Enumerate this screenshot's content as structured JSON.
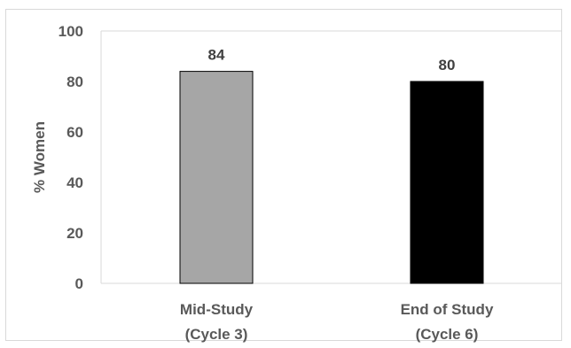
{
  "chart_data": {
    "type": "bar",
    "categories": [
      [
        "Mid-Study",
        "(Cycle 3)"
      ],
      [
        "End of Study",
        "(Cycle 6)"
      ]
    ],
    "values": [
      84,
      80
    ],
    "data_labels": [
      "84",
      "80"
    ],
    "bar_colors": [
      "#a6a6a6",
      "#000000"
    ],
    "bar_outline": "#000000",
    "title": "",
    "xlabel": "",
    "ylabel": "% Women",
    "ylim": [
      0,
      100
    ],
    "yticks": [
      "0",
      "20",
      "40",
      "60",
      "80",
      "100"
    ],
    "ytick_values": [
      0,
      20,
      40,
      60,
      80,
      100
    ],
    "grid": false,
    "legend": "none",
    "axis_color": "#d9d9d9"
  }
}
